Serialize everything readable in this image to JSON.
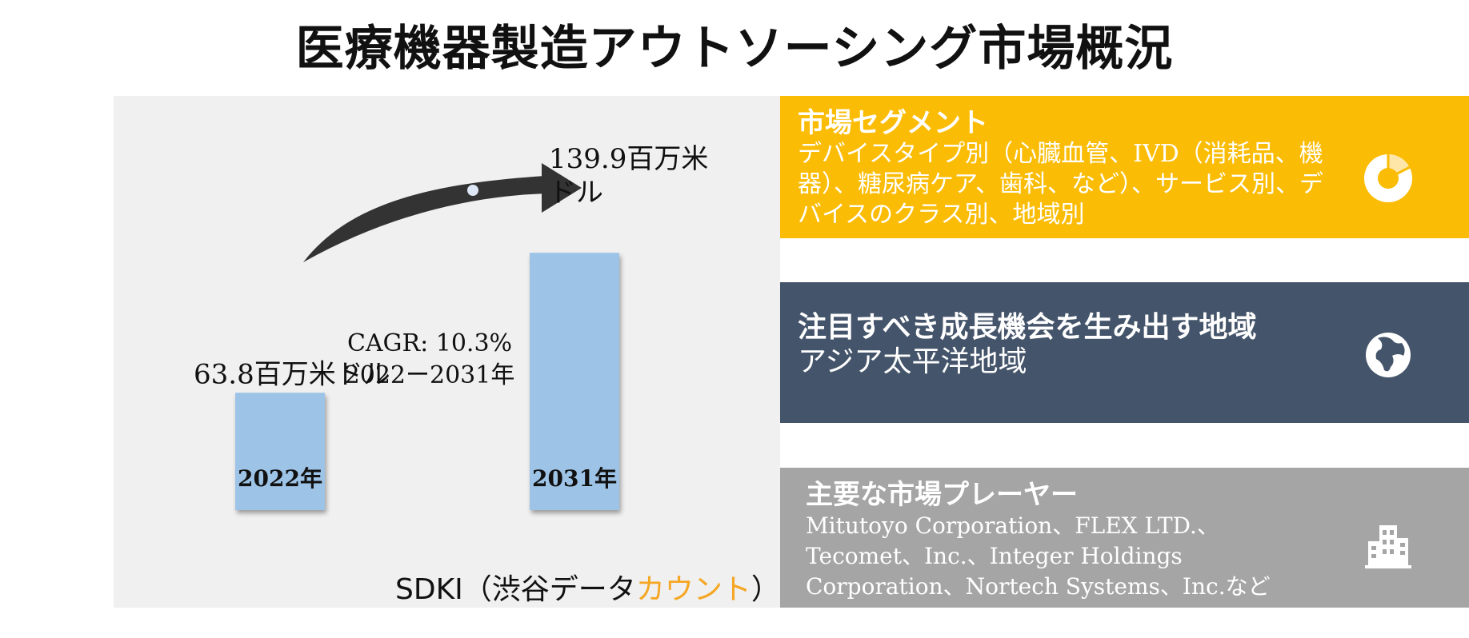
{
  "title": "医療機器製造アウトソーシング市場概況",
  "chart_data": {
    "type": "bar",
    "categories": [
      "2022年",
      "2031年"
    ],
    "values": [
      63.8,
      139.9
    ],
    "value_labels": [
      "63.8百万米ドル",
      "139.9百万米ドル"
    ],
    "unit": "百万米ドル",
    "cagr_line1": "CAGR: 10.3%",
    "cagr_line2": "2022ー2031年",
    "colors": {
      "bar": "#9dc3e6",
      "arrow": "#333333"
    }
  },
  "source": {
    "prefix": "SDKI（渋谷データ",
    "accent": "カウント",
    "suffix": "）"
  },
  "segments": {
    "heading": "市場セグメント",
    "text": "デバイスタイプ別（心臓血管、IVD（消耗品、機器）、糖尿病ケア、歯科、など）、サービス別、デバイスのクラス別、地域別",
    "icon": "pie-chart-icon",
    "color": "#fbbc05"
  },
  "region": {
    "heading": "注目すべき成長機会を生み出す地域",
    "text": "アジア太平洋地域",
    "icon": "globe-icon",
    "color": "#44546a"
  },
  "players": {
    "heading": "主要な市場プレーヤー",
    "text": "Mitutoyo Corporation、FLEX LTD.、Tecomet、Inc.、Integer Holdings Corporation、Nortech Systems、Inc.など",
    "icon": "buildings-icon",
    "color": "#a5a5a5"
  }
}
